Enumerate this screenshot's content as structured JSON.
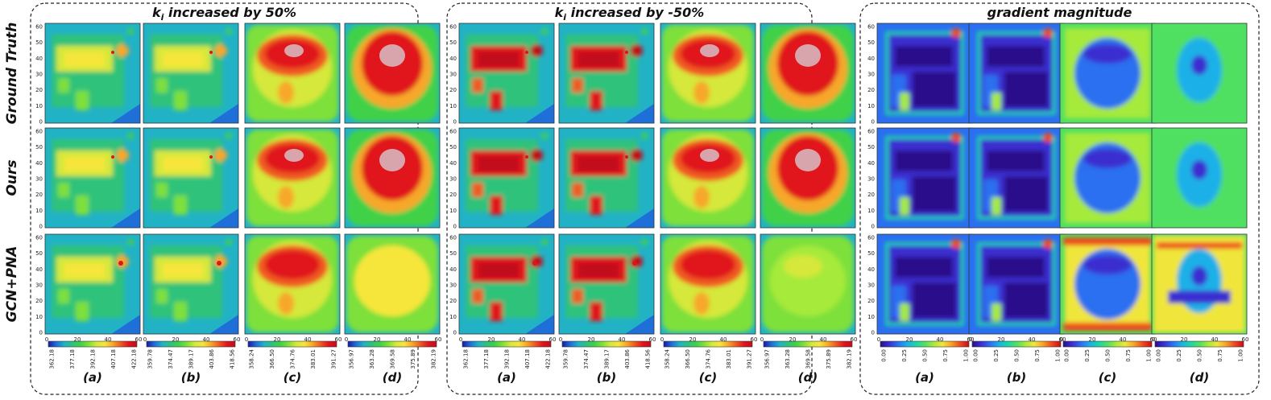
{
  "panels": [
    {
      "id": "ki-plus-50",
      "title_var": "k",
      "title_sub": "i",
      "title_rest": " increased by 50%",
      "colorbar_type": "temperature",
      "colorbar_ticks": [
        [
          "362.18",
          "377.18",
          "392.18",
          "407.18",
          "422.18"
        ],
        [
          "359.78",
          "374.47",
          "389.17",
          "403.86",
          "418.56"
        ],
        [
          "358.24",
          "366.50",
          "374.76",
          "383.01",
          "391.27"
        ],
        [
          "356.97",
          "363.28",
          "369.58",
          "375.89",
          "382.19"
        ]
      ]
    },
    {
      "id": "ki-minus-50",
      "title_var": "k",
      "title_sub": "i",
      "title_rest": " increased by -50%",
      "colorbar_type": "temperature",
      "colorbar_ticks": [
        [
          "362.18",
          "377.18",
          "392.18",
          "407.18",
          "422.18"
        ],
        [
          "359.78",
          "374.47",
          "389.17",
          "403.86",
          "418.56"
        ],
        [
          "358.24",
          "366.50",
          "374.76",
          "383.01",
          "391.27"
        ],
        [
          "356.97",
          "363.28",
          "369.58",
          "375.89",
          "382.19"
        ]
      ]
    },
    {
      "id": "gradient-magnitude",
      "title_var": "",
      "title_sub": "",
      "title_rest": "gradient magnitude",
      "colorbar_type": "gradient",
      "colorbar_ticks": [
        [
          "0.00",
          "0.25",
          "0.50",
          "0.75",
          "1.00"
        ],
        [
          "0.00",
          "0.25",
          "0.50",
          "0.75",
          "1.00"
        ],
        [
          "0.00",
          "0.25",
          "0.50",
          "0.75",
          "1.00"
        ],
        [
          "0.00",
          "0.25",
          "0.50",
          "0.75",
          "1.00"
        ]
      ]
    }
  ],
  "row_labels": [
    "Ground Truth",
    "Ours",
    "GCN+PNA"
  ],
  "column_labels": [
    "(a)",
    "(b)",
    "(c)",
    "(d)"
  ],
  "y_ticks": [
    "0",
    "10",
    "20",
    "30",
    "40",
    "50",
    "60"
  ],
  "x_ticks": [
    "0",
    "20",
    "40",
    "60"
  ],
  "colors": {
    "temperature_colormap": [
      "#1a1aa6",
      "#1f6fd8",
      "#22b2c6",
      "#2ec27a",
      "#3fd14a",
      "#7ee03a",
      "#d6e83a",
      "#f6e63a",
      "#f7a72a",
      "#ef5a22",
      "#e0141e",
      "#c10f1a"
    ],
    "gradient_colormap": [
      "#2a0f8a",
      "#3a2fd0",
      "#2a6ff0",
      "#1bb0e8",
      "#1bd6a8",
      "#4fe062",
      "#a6ea3a",
      "#f0e63a",
      "#f7a22a",
      "#ee4a1e",
      "#c70f18"
    ],
    "hot_core": "#d8a5ad"
  }
}
